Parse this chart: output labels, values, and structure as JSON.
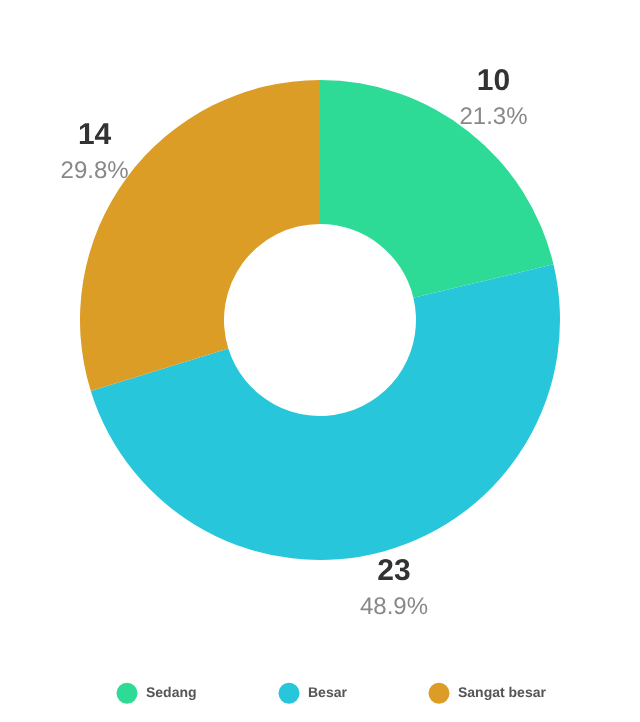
{
  "chart_data": {
    "type": "donut",
    "categories": [
      "Sedang",
      "Besar",
      "Sangat besar"
    ],
    "values": [
      10,
      23,
      14
    ],
    "colors": [
      "#2edb96",
      "#27c6db",
      "#dc9d27"
    ],
    "annotations": [
      "21.3%",
      "48.9%",
      "29.8%"
    ],
    "data_labels": true,
    "legend": "bottom"
  }
}
